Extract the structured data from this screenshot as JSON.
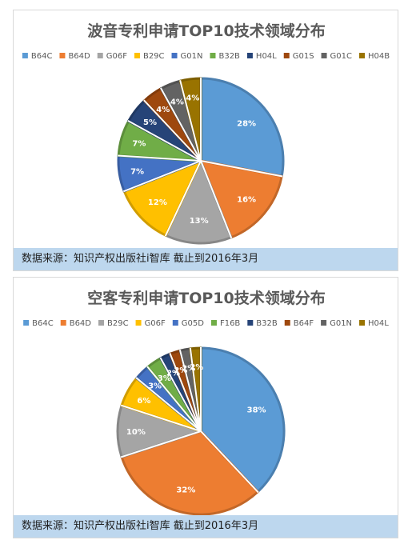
{
  "chart_data": [
    {
      "type": "pie",
      "title": "波音专利申请TOP10技术领域分布",
      "categories": [
        "B64C",
        "B64D",
        "G06F",
        "B29C",
        "G01N",
        "B32B",
        "H04L",
        "G01S",
        "G01C",
        "H04B"
      ],
      "values": [
        28,
        16,
        13,
        12,
        7,
        7,
        5,
        4,
        4,
        4
      ],
      "value_labels": [
        "28%",
        "16%",
        "13%",
        "12%",
        "7%",
        "7%",
        "5%",
        "4%",
        "4%",
        "4%"
      ],
      "colors": [
        "#5b9bd5",
        "#ed7d31",
        "#a5a5a5",
        "#ffc000",
        "#4472c4",
        "#70ad47",
        "#264478",
        "#9e480e",
        "#636363",
        "#997300"
      ],
      "legend_position": "top",
      "source": "数据来源：知识产权出版社i智库 截止到2016年3月"
    },
    {
      "type": "pie",
      "title": "空客专利申请TOP10技术领域分布",
      "categories": [
        "B64C",
        "B64D",
        "B29C",
        "G06F",
        "G05D",
        "F16B",
        "B32B",
        "B64F",
        "G01N",
        "H04L"
      ],
      "values": [
        38,
        32,
        10,
        6,
        3,
        3,
        2,
        2,
        2,
        2
      ],
      "value_labels": [
        "38%",
        "32%",
        "10%",
        "6%",
        "3%",
        "3%",
        "2%",
        "2%",
        "2%",
        "2%"
      ],
      "colors": [
        "#5b9bd5",
        "#ed7d31",
        "#a5a5a5",
        "#ffc000",
        "#4472c4",
        "#70ad47",
        "#264478",
        "#9e480e",
        "#636363",
        "#997300"
      ],
      "legend_position": "top",
      "source": "数据来源：知识产权出版社i智库 截止到2016年3月"
    }
  ]
}
